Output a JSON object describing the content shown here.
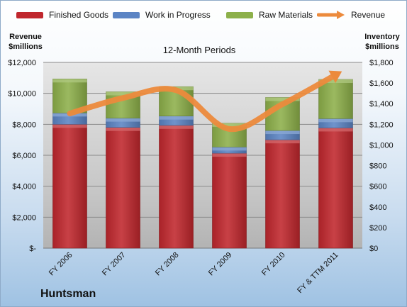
{
  "company": "Huntsman",
  "chart_data": {
    "type": "bar",
    "stacked": true,
    "title": "12-Month Periods",
    "categories": [
      "FY 2006",
      "FY 2007",
      "FY 2008",
      "FY 2009",
      "FY 2010",
      "FY & TTM 2011"
    ],
    "series": [
      {
        "name": "Finished Goods",
        "axis": "right",
        "color": "#c0272d",
        "values": [
          1200,
          1170,
          1190,
          920,
          1050,
          1165
        ]
      },
      {
        "name": "Work in Progress",
        "axis": "right",
        "color": "#5b84c4",
        "values": [
          110,
          90,
          90,
          60,
          90,
          90
        ]
      },
      {
        "name": "Raw Materials",
        "axis": "right",
        "color": "#8db04a",
        "values": [
          330,
          255,
          285,
          230,
          320,
          380
        ]
      },
      {
        "name": "Revenue",
        "axis": "left",
        "type": "line",
        "color": "#ec8a3c",
        "values": [
          8700,
          9700,
          10200,
          7700,
          9300,
          11200
        ]
      }
    ],
    "ylabel_left": "Revenue\n$millions",
    "ylabel_right": "Inventory\n$millions",
    "ylim_left": [
      0,
      12000
    ],
    "ylim_right": [
      0,
      1800
    ],
    "yticks_left": [
      "$-",
      "$2,000",
      "$4,000",
      "$6,000",
      "$8,000",
      "$10,000",
      "$12,000"
    ],
    "yticks_right": [
      "$0",
      "$200",
      "$400",
      "$600",
      "$800",
      "$1,000",
      "$1,200",
      "$1,400",
      "$1,600",
      "$1,800"
    ],
    "grid": true,
    "legend_position": "top"
  }
}
